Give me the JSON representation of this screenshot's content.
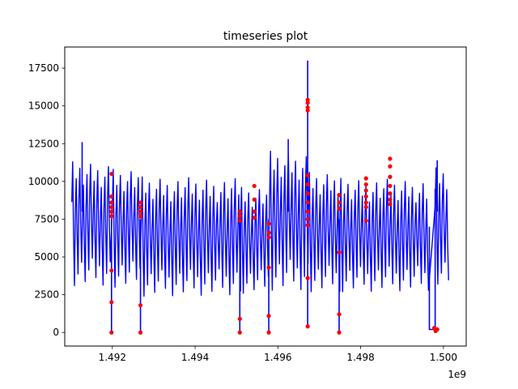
{
  "chart_data": {
    "type": "line",
    "title": "timeseries plot",
    "xlabel": "",
    "ylabel": "",
    "x_offset_label": "1e9",
    "x_scale": 1000000000,
    "xlim": [
      1.49085,
      1.50055
    ],
    "ylim": [
      -900,
      18900
    ],
    "x_ticks": [
      1.492,
      1.494,
      1.496,
      1.498,
      1.5
    ],
    "x_tick_labels": [
      "1.492",
      "1.494",
      "1.496",
      "1.498",
      "1.500"
    ],
    "y_ticks": [
      0,
      2500,
      5000,
      7500,
      10000,
      12500,
      15000,
      17500
    ],
    "y_tick_labels": [
      "0",
      "2500",
      "5000",
      "7500",
      "10000",
      "12500",
      "15000",
      "17500"
    ],
    "grid": false,
    "colors": {
      "series": "#0000ff",
      "markers": "#ff0000",
      "axes": "#000000"
    },
    "series": [
      {
        "style": "line",
        "period": 8.64e-05,
        "segments": [
          {
            "x0": 1.49102,
            "x1": 1.49196,
            "low": 3100,
            "high": 11300
          },
          {
            "x0": 1.492,
            "x1": 1.49266,
            "low": 3000,
            "high": 10800
          },
          {
            "x0": 1.4927,
            "x1": 1.49506,
            "low": 2400,
            "high": 10300
          },
          {
            "x0": 1.4951,
            "x1": 1.49576,
            "low": 2600,
            "high": 9600
          },
          {
            "x0": 1.4958,
            "x1": 1.4967,
            "low": 2800,
            "high": 12000
          },
          {
            "x0": 1.49674,
            "x1": 1.49746,
            "low": 2700,
            "high": 10600
          },
          {
            "x0": 1.4975,
            "x1": 1.49966,
            "low": 2700,
            "high": 10200
          },
          {
            "x0": 1.4998,
            "x1": 1.50012,
            "low": 3200,
            "high": 10900
          }
        ],
        "spikes": [
          {
            "x": 1.49127,
            "y": 12600
          },
          {
            "x": 1.49625,
            "y": 12800
          },
          {
            "x": 1.49672,
            "y": 18000
          },
          {
            "x": 1.49985,
            "y": 11400
          }
        ],
        "drops": [
          {
            "x": 1.49198,
            "y": 0
          },
          {
            "x": 1.49268,
            "y": 0
          },
          {
            "x": 1.49508,
            "y": 0
          },
          {
            "x": 1.49578,
            "y": 0
          },
          {
            "x": 1.49672,
            "y": 400
          },
          {
            "x": 1.49748,
            "y": 0
          }
        ],
        "gap": {
          "x0": 1.49966,
          "x1": 1.4998,
          "y": 200
        }
      },
      {
        "style": "markers",
        "points": [
          [
            1.49198,
            10500
          ],
          [
            1.49198,
            9000
          ],
          [
            1.49198,
            8600
          ],
          [
            1.49198,
            8300
          ],
          [
            1.49198,
            8000
          ],
          [
            1.49198,
            7700
          ],
          [
            1.49198,
            4100
          ],
          [
            1.49198,
            2000
          ],
          [
            1.49198,
            0
          ],
          [
            1.49268,
            8600
          ],
          [
            1.49268,
            8300
          ],
          [
            1.49268,
            8000
          ],
          [
            1.49268,
            7700
          ],
          [
            1.49268,
            1800
          ],
          [
            1.49268,
            0
          ],
          [
            1.49508,
            8000
          ],
          [
            1.49508,
            7700
          ],
          [
            1.49508,
            7400
          ],
          [
            1.49508,
            900
          ],
          [
            1.49508,
            0
          ],
          [
            1.49543,
            9700
          ],
          [
            1.49543,
            8800
          ],
          [
            1.49543,
            8000
          ],
          [
            1.49543,
            7600
          ],
          [
            1.49578,
            7200
          ],
          [
            1.49578,
            6600
          ],
          [
            1.49578,
            6300
          ],
          [
            1.49578,
            4300
          ],
          [
            1.49578,
            1100
          ],
          [
            1.49578,
            0
          ],
          [
            1.49672,
            15400
          ],
          [
            1.49672,
            15200
          ],
          [
            1.49672,
            14900
          ],
          [
            1.49672,
            14700
          ],
          [
            1.49672,
            10400
          ],
          [
            1.49672,
            9800
          ],
          [
            1.49672,
            9200
          ],
          [
            1.49672,
            8600
          ],
          [
            1.49672,
            8000
          ],
          [
            1.49672,
            7500
          ],
          [
            1.49672,
            7100
          ],
          [
            1.49672,
            3600
          ],
          [
            1.49672,
            400
          ],
          [
            1.49748,
            9100
          ],
          [
            1.49748,
            8600
          ],
          [
            1.49748,
            8200
          ],
          [
            1.49748,
            5300
          ],
          [
            1.49748,
            1200
          ],
          [
            1.49748,
            0
          ],
          [
            1.49813,
            10200
          ],
          [
            1.49813,
            9800
          ],
          [
            1.49813,
            9400
          ],
          [
            1.49813,
            9000
          ],
          [
            1.49813,
            8600
          ],
          [
            1.49813,
            8300
          ],
          [
            1.49813,
            7400
          ],
          [
            1.49871,
            11500
          ],
          [
            1.49871,
            11000
          ],
          [
            1.49871,
            10300
          ],
          [
            1.49871,
            9700
          ],
          [
            1.49871,
            9200
          ],
          [
            1.49871,
            8800
          ],
          [
            1.49871,
            8500
          ],
          [
            1.49978,
            300
          ],
          [
            1.49981,
            100
          ],
          [
            1.49985,
            200
          ]
        ]
      }
    ]
  }
}
